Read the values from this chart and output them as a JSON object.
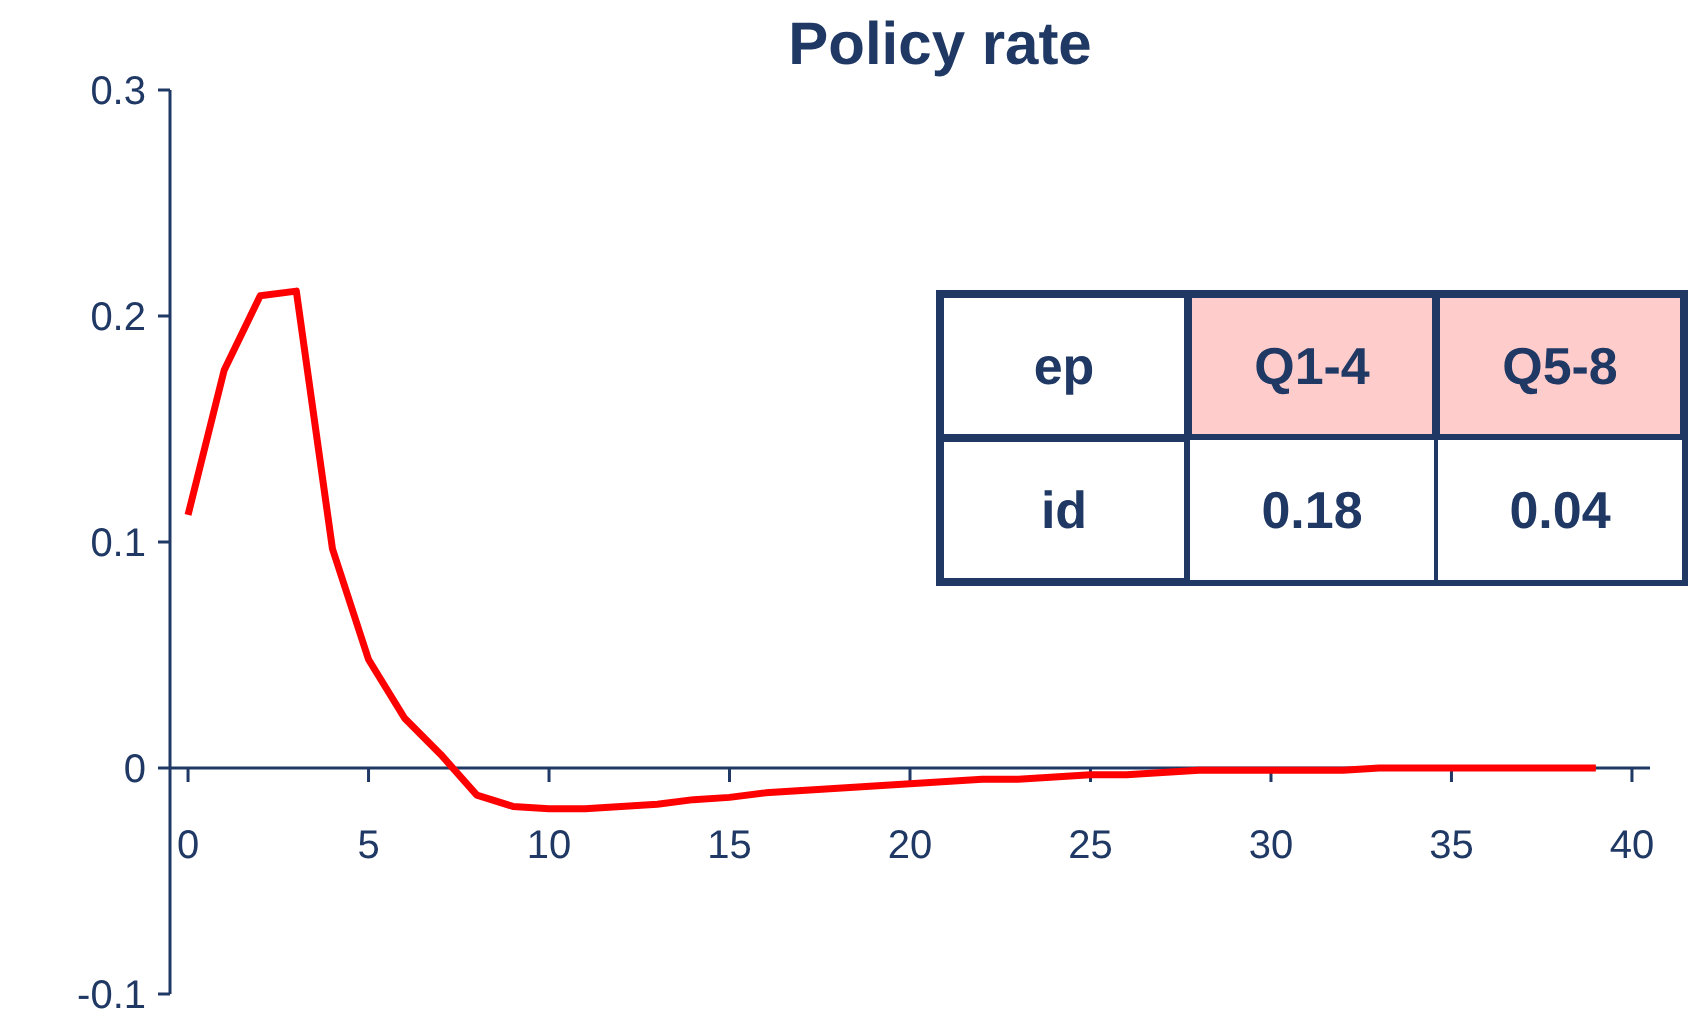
{
  "chart_data": {
    "type": "line",
    "title": "Policy rate",
    "x": [
      0,
      1,
      2,
      3,
      4,
      5,
      6,
      7,
      8,
      9,
      10,
      11,
      12,
      13,
      14,
      15,
      16,
      17,
      18,
      19,
      20,
      21,
      22,
      23,
      24,
      25,
      26,
      27,
      28,
      29,
      30,
      31,
      32,
      33,
      34,
      35,
      36,
      37,
      38,
      39
    ],
    "series": [
      {
        "color": "#ff0000",
        "values": [
          0.112,
          0.176,
          0.209,
          0.211,
          0.097,
          0.048,
          0.022,
          0.006,
          -0.012,
          -0.017,
          -0.018,
          -0.018,
          -0.017,
          -0.016,
          -0.014,
          -0.013,
          -0.011,
          -0.01,
          -0.009,
          -0.008,
          -0.007,
          -0.006,
          -0.005,
          -0.005,
          -0.004,
          -0.003,
          -0.003,
          -0.002,
          -0.001,
          -0.001,
          -0.001,
          -0.001,
          -0.001,
          0,
          0,
          0,
          0,
          0,
          0,
          0
        ]
      }
    ],
    "xlim": [
      -0.5,
      40.5
    ],
    "xticks": [
      0,
      5,
      10,
      15,
      20,
      25,
      30,
      35,
      40
    ],
    "ylim": [
      -0.1,
      0.3
    ],
    "yticks": [
      -0.1,
      0,
      0.1,
      0.2,
      0.3
    ],
    "annotations": [
      "ep",
      "Q1-4",
      "Q5-8",
      "id",
      "0.18",
      "0.04"
    ],
    "grid": false
  }
}
